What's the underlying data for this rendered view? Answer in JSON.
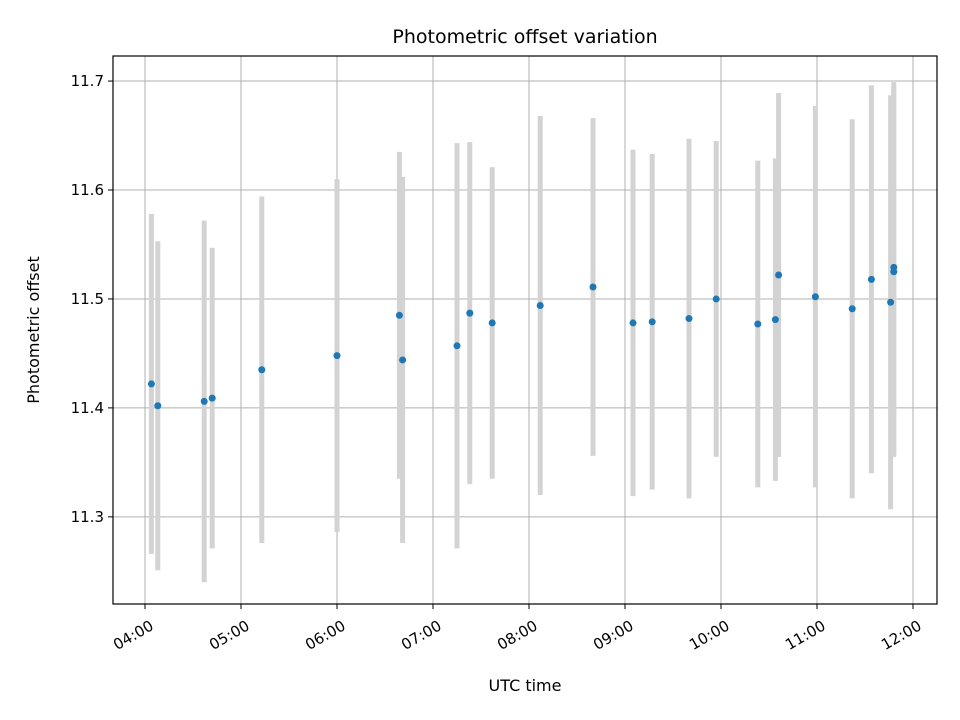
{
  "chart_data": {
    "type": "scatter",
    "title": "Photometric offset variation",
    "xlabel": "UTC time",
    "ylabel": "Photometric offset",
    "xlim": [
      "03:40",
      "12:15"
    ],
    "ylim": [
      11.22,
      11.723
    ],
    "x_ticks": [
      "04:00",
      "05:00",
      "06:00",
      "07:00",
      "08:00",
      "09:00",
      "10:00",
      "11:00",
      "12:00"
    ],
    "y_ticks": [
      11.3,
      11.4,
      11.5,
      11.6,
      11.7
    ],
    "grid": true,
    "colors": {
      "point": "#1f77b4",
      "errorbar": "#d3d3d3",
      "grid": "#b0b0b0"
    },
    "series": [
      {
        "points": [
          {
            "x": "04:04",
            "y": 11.422,
            "err": 0.156
          },
          {
            "x": "04:08",
            "y": 11.402,
            "err": 0.151
          },
          {
            "x": "04:37",
            "y": 11.406,
            "err": 0.166
          },
          {
            "x": "04:42",
            "y": 11.409,
            "err": 0.138
          },
          {
            "x": "05:13",
            "y": 11.435,
            "err": 0.159
          },
          {
            "x": "06:00",
            "y": 11.448,
            "err": 0.162
          },
          {
            "x": "06:39",
            "y": 11.485,
            "err": 0.15
          },
          {
            "x": "06:41",
            "y": 11.444,
            "err": 0.168
          },
          {
            "x": "07:15",
            "y": 11.457,
            "err": 0.186
          },
          {
            "x": "07:23",
            "y": 11.487,
            "err": 0.157
          },
          {
            "x": "07:37",
            "y": 11.478,
            "err": 0.143
          },
          {
            "x": "08:07",
            "y": 11.494,
            "err": 0.174
          },
          {
            "x": "08:40",
            "y": 11.511,
            "err": 0.155
          },
          {
            "x": "09:05",
            "y": 11.478,
            "err": 0.159
          },
          {
            "x": "09:17",
            "y": 11.479,
            "err": 0.154
          },
          {
            "x": "09:40",
            "y": 11.482,
            "err": 0.165
          },
          {
            "x": "09:57",
            "y": 11.5,
            "err": 0.145
          },
          {
            "x": "10:23",
            "y": 11.477,
            "err": 0.15
          },
          {
            "x": "10:34",
            "y": 11.481,
            "err": 0.148
          },
          {
            "x": "10:36",
            "y": 11.522,
            "err": 0.167
          },
          {
            "x": "10:59",
            "y": 11.502,
            "err": 0.175
          },
          {
            "x": "11:22",
            "y": 11.491,
            "err": 0.174
          },
          {
            "x": "11:34",
            "y": 11.518,
            "err": 0.178
          },
          {
            "x": "11:46",
            "y": 11.497,
            "err": 0.19
          },
          {
            "x": "11:48",
            "y": 11.529,
            "err": 0.17
          },
          {
            "x": "11:48",
            "y": 11.525,
            "err": 0.17
          }
        ]
      }
    ]
  }
}
